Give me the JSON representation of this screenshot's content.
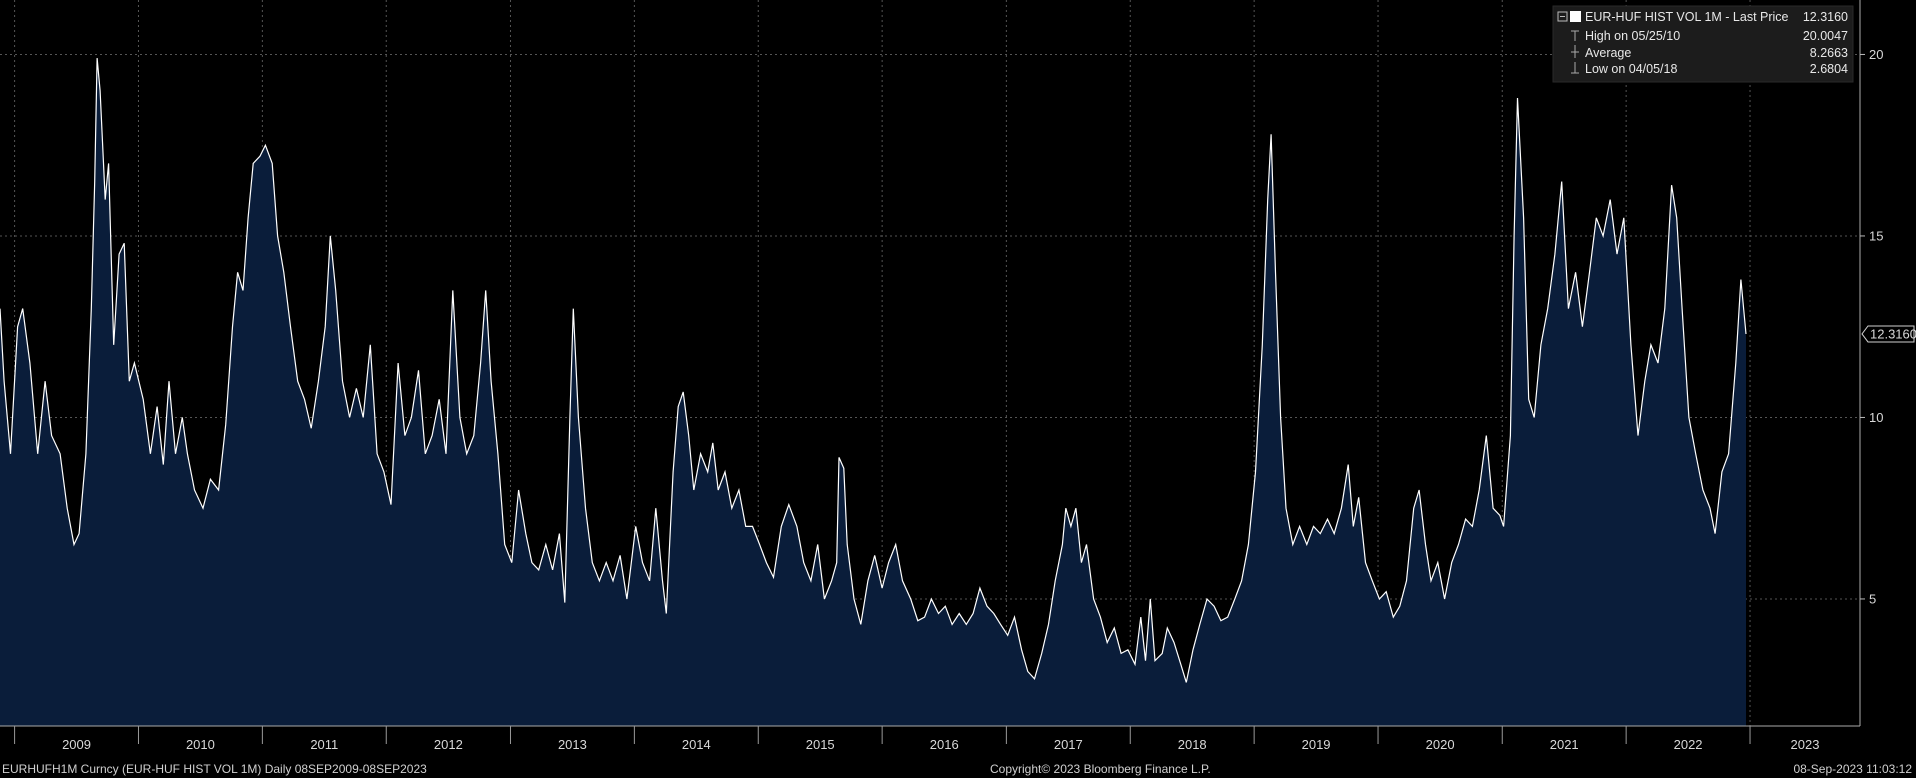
{
  "chart_data": {
    "type": "area",
    "title": "",
    "xlabel": "",
    "ylabel": "",
    "ylim": [
      1.5,
      21.5
    ],
    "xlim": [
      "2008-11-19",
      "2023-11-21"
    ],
    "y_ticks": [
      "5",
      "10",
      "15",
      "20"
    ],
    "x_ticks": [
      "2009",
      "2010",
      "2011",
      "2012",
      "2013",
      "2014",
      "2015",
      "2016",
      "2017",
      "2018",
      "2019",
      "2020",
      "2021",
      "2022",
      "2023"
    ],
    "grid": true,
    "legend_position": "top-right",
    "last_value_label": "12.3160",
    "legend": {
      "series_label": "EUR-HUF HIST VOL 1M - Last Price",
      "series_value": "12.3160",
      "rows": [
        {
          "label": "High on 05/25/10",
          "value": "20.0047"
        },
        {
          "label": "Average",
          "value": "8.2663"
        },
        {
          "label": "Low on 04/05/18",
          "value": "2.6804"
        }
      ]
    },
    "series": [
      {
        "name": "EUR-HUF HIST VOL 1M",
        "color": "#ffffff",
        "fill": "#0a1d3a",
        "points": [
          [
            "2008-11-19",
            13.0
          ],
          [
            "2008-12-01",
            11.0
          ],
          [
            "2008-12-20",
            9.0
          ],
          [
            "2009-01-10",
            12.5
          ],
          [
            "2009-01-25",
            13.0
          ],
          [
            "2009-02-15",
            11.5
          ],
          [
            "2009-03-10",
            9.0
          ],
          [
            "2009-04-01",
            11.0
          ],
          [
            "2009-04-20",
            9.5
          ],
          [
            "2009-05-15",
            9.0
          ],
          [
            "2009-06-05",
            7.5
          ],
          [
            "2009-06-25",
            6.5
          ],
          [
            "2009-07-10",
            6.8
          ],
          [
            "2009-07-30",
            9.0
          ],
          [
            "2009-08-15",
            13.0
          ],
          [
            "2009-08-25",
            16.5
          ],
          [
            "2009-09-01",
            19.9
          ],
          [
            "2009-09-10",
            19.0
          ],
          [
            "2009-09-25",
            16.0
          ],
          [
            "2009-10-05",
            17.0
          ],
          [
            "2009-10-20",
            12.0
          ],
          [
            "2009-11-05",
            14.5
          ],
          [
            "2009-11-20",
            14.8
          ],
          [
            "2009-12-05",
            11.0
          ],
          [
            "2009-12-20",
            11.5
          ],
          [
            "2010-01-15",
            10.5
          ],
          [
            "2010-02-05",
            9.0
          ],
          [
            "2010-02-25",
            10.3
          ],
          [
            "2010-03-15",
            8.7
          ],
          [
            "2010-04-01",
            11.0
          ],
          [
            "2010-04-20",
            9.0
          ],
          [
            "2010-05-10",
            10.0
          ],
          [
            "2010-05-25",
            9.0
          ],
          [
            "2010-06-15",
            8.0
          ],
          [
            "2010-07-10",
            7.5
          ],
          [
            "2010-08-01",
            8.3
          ],
          [
            "2010-08-25",
            8.0
          ],
          [
            "2010-09-15",
            9.8
          ],
          [
            "2010-10-05",
            12.5
          ],
          [
            "2010-10-20",
            14.0
          ],
          [
            "2010-11-05",
            13.5
          ],
          [
            "2010-11-20",
            15.5
          ],
          [
            "2010-12-05",
            17.0
          ],
          [
            "2010-12-25",
            17.2
          ],
          [
            "2011-01-10",
            17.5
          ],
          [
            "2011-01-30",
            17.0
          ],
          [
            "2011-02-15",
            15.0
          ],
          [
            "2011-03-05",
            14.0
          ],
          [
            "2011-03-25",
            12.5
          ],
          [
            "2011-04-15",
            11.0
          ],
          [
            "2011-05-05",
            10.5
          ],
          [
            "2011-05-25",
            9.7
          ],
          [
            "2011-06-15",
            11.0
          ],
          [
            "2011-07-05",
            12.5
          ],
          [
            "2011-07-20",
            15.0
          ],
          [
            "2011-08-05",
            13.5
          ],
          [
            "2011-08-25",
            11.0
          ],
          [
            "2011-09-15",
            10.0
          ],
          [
            "2011-10-05",
            10.8
          ],
          [
            "2011-10-25",
            10.0
          ],
          [
            "2011-11-15",
            12.0
          ],
          [
            "2011-12-05",
            9.0
          ],
          [
            "2011-12-25",
            8.5
          ],
          [
            "2012-01-15",
            7.6
          ],
          [
            "2012-02-05",
            11.5
          ],
          [
            "2012-02-25",
            9.5
          ],
          [
            "2012-03-15",
            10.0
          ],
          [
            "2012-04-05",
            11.3
          ],
          [
            "2012-04-25",
            9.0
          ],
          [
            "2012-05-15",
            9.5
          ],
          [
            "2012-06-05",
            10.5
          ],
          [
            "2012-06-25",
            9.0
          ],
          [
            "2012-07-15",
            13.5
          ],
          [
            "2012-08-05",
            10.0
          ],
          [
            "2012-08-25",
            9.0
          ],
          [
            "2012-09-15",
            9.5
          ],
          [
            "2012-10-05",
            11.5
          ],
          [
            "2012-10-20",
            13.5
          ],
          [
            "2012-11-05",
            11.0
          ],
          [
            "2012-11-25",
            9.0
          ],
          [
            "2012-12-15",
            6.5
          ],
          [
            "2013-01-05",
            6.0
          ],
          [
            "2013-01-25",
            8.0
          ],
          [
            "2013-02-15",
            6.8
          ],
          [
            "2013-03-05",
            6.0
          ],
          [
            "2013-03-25",
            5.8
          ],
          [
            "2013-04-15",
            6.5
          ],
          [
            "2013-05-05",
            5.8
          ],
          [
            "2013-05-25",
            6.8
          ],
          [
            "2013-06-10",
            4.9
          ],
          [
            "2013-06-25",
            10.0
          ],
          [
            "2013-07-05",
            13.0
          ],
          [
            "2013-07-20",
            10.0
          ],
          [
            "2013-08-10",
            7.5
          ],
          [
            "2013-08-30",
            6.0
          ],
          [
            "2013-09-20",
            5.5
          ],
          [
            "2013-10-10",
            6.0
          ],
          [
            "2013-10-30",
            5.5
          ],
          [
            "2013-11-20",
            6.2
          ],
          [
            "2013-12-10",
            5.0
          ],
          [
            "2014-01-05",
            7.0
          ],
          [
            "2014-01-25",
            6.0
          ],
          [
            "2014-02-15",
            5.5
          ],
          [
            "2014-03-05",
            7.5
          ],
          [
            "2014-03-25",
            5.5
          ],
          [
            "2014-04-05",
            4.6
          ],
          [
            "2014-04-25",
            8.5
          ],
          [
            "2014-05-10",
            10.3
          ],
          [
            "2014-05-25",
            10.7
          ],
          [
            "2014-06-10",
            9.5
          ],
          [
            "2014-06-25",
            8.0
          ],
          [
            "2014-07-15",
            9.0
          ],
          [
            "2014-08-05",
            8.5
          ],
          [
            "2014-08-20",
            9.3
          ],
          [
            "2014-09-05",
            8.0
          ],
          [
            "2014-09-25",
            8.5
          ],
          [
            "2014-10-15",
            7.5
          ],
          [
            "2014-11-05",
            8.0
          ],
          [
            "2014-11-25",
            7.0
          ],
          [
            "2014-12-15",
            7.0
          ],
          [
            "2015-01-05",
            6.5
          ],
          [
            "2015-01-25",
            6.0
          ],
          [
            "2015-02-15",
            5.6
          ],
          [
            "2015-03-10",
            7.0
          ],
          [
            "2015-04-01",
            7.6
          ],
          [
            "2015-04-25",
            7.0
          ],
          [
            "2015-05-15",
            6.0
          ],
          [
            "2015-06-05",
            5.5
          ],
          [
            "2015-06-25",
            6.5
          ],
          [
            "2015-07-15",
            5.0
          ],
          [
            "2015-08-05",
            5.5
          ],
          [
            "2015-08-20",
            6.0
          ],
          [
            "2015-08-27",
            8.9
          ],
          [
            "2015-09-10",
            8.6
          ],
          [
            "2015-09-20",
            6.5
          ],
          [
            "2015-10-10",
            5.0
          ],
          [
            "2015-10-30",
            4.3
          ],
          [
            "2015-11-20",
            5.5
          ],
          [
            "2015-12-10",
            6.2
          ],
          [
            "2016-01-01",
            5.3
          ],
          [
            "2016-01-20",
            6.0
          ],
          [
            "2016-02-10",
            6.5
          ],
          [
            "2016-03-01",
            5.5
          ],
          [
            "2016-03-25",
            5.0
          ],
          [
            "2016-04-15",
            4.4
          ],
          [
            "2016-05-05",
            4.5
          ],
          [
            "2016-05-25",
            5.0
          ],
          [
            "2016-06-15",
            4.6
          ],
          [
            "2016-07-05",
            4.8
          ],
          [
            "2016-07-25",
            4.3
          ],
          [
            "2016-08-15",
            4.6
          ],
          [
            "2016-09-05",
            4.3
          ],
          [
            "2016-09-25",
            4.6
          ],
          [
            "2016-10-15",
            5.3
          ],
          [
            "2016-11-05",
            4.8
          ],
          [
            "2016-11-25",
            4.6
          ],
          [
            "2016-12-15",
            4.3
          ],
          [
            "2017-01-05",
            4.0
          ],
          [
            "2017-01-25",
            4.5
          ],
          [
            "2017-02-15",
            3.6
          ],
          [
            "2017-03-05",
            3.0
          ],
          [
            "2017-03-25",
            2.8
          ],
          [
            "2017-04-15",
            3.5
          ],
          [
            "2017-05-05",
            4.3
          ],
          [
            "2017-05-25",
            5.5
          ],
          [
            "2017-06-15",
            6.5
          ],
          [
            "2017-06-25",
            7.5
          ],
          [
            "2017-07-10",
            7.0
          ],
          [
            "2017-07-25",
            7.5
          ],
          [
            "2017-08-10",
            6.0
          ],
          [
            "2017-08-25",
            6.5
          ],
          [
            "2017-09-15",
            5.0
          ],
          [
            "2017-10-05",
            4.5
          ],
          [
            "2017-10-25",
            3.8
          ],
          [
            "2017-11-15",
            4.2
          ],
          [
            "2017-12-05",
            3.5
          ],
          [
            "2017-12-25",
            3.6
          ],
          [
            "2018-01-15",
            3.2
          ],
          [
            "2018-02-01",
            4.5
          ],
          [
            "2018-02-15",
            3.3
          ],
          [
            "2018-03-01",
            5.0
          ],
          [
            "2018-03-15",
            3.3
          ],
          [
            "2018-04-05",
            3.5
          ],
          [
            "2018-04-20",
            4.2
          ],
          [
            "2018-05-10",
            3.8
          ],
          [
            "2018-05-30",
            3.2
          ],
          [
            "2018-06-15",
            2.7
          ],
          [
            "2018-07-05",
            3.6
          ],
          [
            "2018-07-25",
            4.3
          ],
          [
            "2018-08-15",
            5.0
          ],
          [
            "2018-09-05",
            4.8
          ],
          [
            "2018-09-25",
            4.4
          ],
          [
            "2018-10-15",
            4.5
          ],
          [
            "2018-11-05",
            5.0
          ],
          [
            "2018-11-25",
            5.5
          ],
          [
            "2018-12-15",
            6.5
          ],
          [
            "2019-01-05",
            8.5
          ],
          [
            "2019-01-25",
            12.0
          ],
          [
            "2019-02-10",
            16.0
          ],
          [
            "2019-02-20",
            17.8
          ],
          [
            "2019-03-05",
            14.0
          ],
          [
            "2019-03-20",
            10.0
          ],
          [
            "2019-04-05",
            7.5
          ],
          [
            "2019-04-25",
            6.5
          ],
          [
            "2019-05-15",
            7.0
          ],
          [
            "2019-06-05",
            6.5
          ],
          [
            "2019-06-25",
            7.0
          ],
          [
            "2019-07-15",
            6.8
          ],
          [
            "2019-08-05",
            7.2
          ],
          [
            "2019-08-25",
            6.8
          ],
          [
            "2019-09-15",
            7.5
          ],
          [
            "2019-10-05",
            8.7
          ],
          [
            "2019-10-20",
            7.0
          ],
          [
            "2019-11-05",
            7.8
          ],
          [
            "2019-11-25",
            6.0
          ],
          [
            "2019-12-15",
            5.5
          ],
          [
            "2020-01-05",
            5.0
          ],
          [
            "2020-01-25",
            5.2
          ],
          [
            "2020-02-15",
            4.5
          ],
          [
            "2020-03-05",
            4.8
          ],
          [
            "2020-03-25",
            5.5
          ],
          [
            "2020-04-15",
            7.5
          ],
          [
            "2020-05-01",
            8.0
          ],
          [
            "2020-05-20",
            6.5
          ],
          [
            "2020-06-05",
            5.5
          ],
          [
            "2020-06-25",
            6.0
          ],
          [
            "2020-07-15",
            5.0
          ],
          [
            "2020-08-05",
            6.0
          ],
          [
            "2020-08-25",
            6.5
          ],
          [
            "2020-09-15",
            7.2
          ],
          [
            "2020-10-05",
            7.0
          ],
          [
            "2020-10-25",
            8.0
          ],
          [
            "2020-11-15",
            9.5
          ],
          [
            "2020-12-05",
            7.5
          ],
          [
            "2020-12-25",
            7.3
          ],
          [
            "2021-01-05",
            7.0
          ],
          [
            "2021-01-25",
            9.5
          ],
          [
            "2021-02-05",
            15.0
          ],
          [
            "2021-02-15",
            18.8
          ],
          [
            "2021-03-05",
            15.5
          ],
          [
            "2021-03-20",
            10.5
          ],
          [
            "2021-04-05",
            10.0
          ],
          [
            "2021-04-25",
            12.0
          ],
          [
            "2021-05-15",
            13.0
          ],
          [
            "2021-06-05",
            14.5
          ],
          [
            "2021-06-25",
            16.5
          ],
          [
            "2021-07-15",
            13.0
          ],
          [
            "2021-08-05",
            14.0
          ],
          [
            "2021-08-25",
            12.5
          ],
          [
            "2021-09-15",
            14.0
          ],
          [
            "2021-10-05",
            15.5
          ],
          [
            "2021-10-25",
            15.0
          ],
          [
            "2021-11-15",
            16.0
          ],
          [
            "2021-12-05",
            14.5
          ],
          [
            "2021-12-25",
            15.5
          ],
          [
            "2022-01-15",
            12.0
          ],
          [
            "2022-02-05",
            9.5
          ],
          [
            "2022-02-25",
            11.0
          ],
          [
            "2022-03-15",
            12.0
          ],
          [
            "2022-04-05",
            11.5
          ],
          [
            "2022-04-25",
            13.0
          ],
          [
            "2022-05-15",
            16.4
          ],
          [
            "2022-05-30",
            15.5
          ],
          [
            "2022-06-15",
            13.0
          ],
          [
            "2022-07-05",
            10.0
          ],
          [
            "2022-07-25",
            9.0
          ],
          [
            "2022-08-15",
            8.0
          ],
          [
            "2022-09-05",
            7.5
          ],
          [
            "2022-09-20",
            6.8
          ],
          [
            "2022-10-10",
            8.5
          ],
          [
            "2022-10-30",
            9.0
          ],
          [
            "2022-11-20",
            11.5
          ],
          [
            "2022-12-05",
            13.8
          ],
          [
            "2022-12-20",
            12.3
          ]
        ]
      }
    ]
  },
  "footer": {
    "left": "EURHUFH1M Curncy (EUR-HUF HIST VOL 1M)  Daily 08SEP2009-08SEP2023",
    "center": "Copyright© 2023 Bloomberg Finance L.P.",
    "right": "08-Sep-2023 11:03:12"
  }
}
